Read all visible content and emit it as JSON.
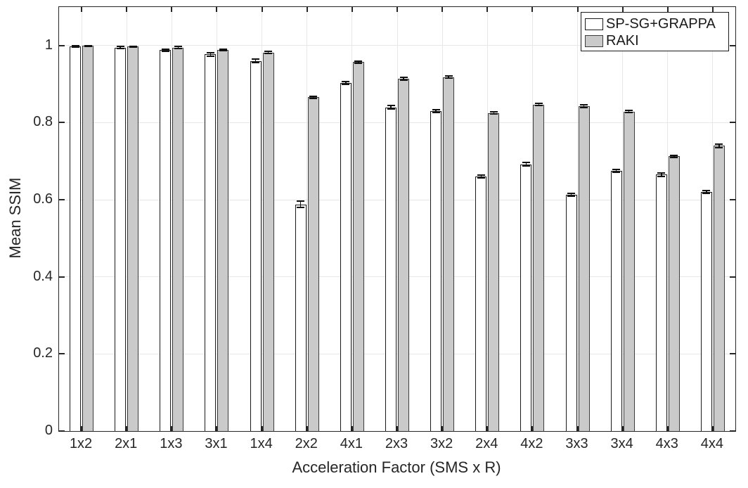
{
  "chart_data": {
    "type": "bar",
    "title": "",
    "xlabel": "Acceleration Factor (SMS x R)",
    "ylabel": "Mean SSIM",
    "categories": [
      "1x2",
      "2x1",
      "1x3",
      "3x1",
      "1x4",
      "2x2",
      "4x1",
      "2x3",
      "3x2",
      "2x4",
      "4x2",
      "3x3",
      "3x4",
      "4x3",
      "4x4"
    ],
    "series": [
      {
        "name": "SP-SG+GRAPPA",
        "fill": "#ffffff",
        "edge": "#1a1a1a",
        "values": [
          0.998,
          0.995,
          0.988,
          0.977,
          0.96,
          0.588,
          0.903,
          0.84,
          0.83,
          0.66,
          0.692,
          0.613,
          0.675,
          0.665,
          0.62
        ],
        "errors": [
          0.002,
          0.002,
          0.003,
          0.004,
          0.005,
          0.008,
          0.004,
          0.005,
          0.004,
          0.004,
          0.004,
          0.004,
          0.004,
          0.004,
          0.004
        ]
      },
      {
        "name": "RAKI",
        "fill": "#cacaca",
        "edge": "#3d3d3d",
        "values": [
          0.999,
          0.997,
          0.995,
          0.989,
          0.982,
          0.866,
          0.957,
          0.914,
          0.918,
          0.825,
          0.847,
          0.843,
          0.829,
          0.713,
          0.74
        ],
        "errors": [
          0.001,
          0.001,
          0.002,
          0.002,
          0.003,
          0.003,
          0.003,
          0.003,
          0.003,
          0.003,
          0.003,
          0.003,
          0.003,
          0.003,
          0.004
        ]
      }
    ],
    "ylim": [
      0,
      1.1
    ],
    "yticks": [
      0,
      0.2,
      0.4,
      0.6,
      0.8,
      1
    ],
    "ytick_labels": [
      "0",
      "0.2",
      "0.4",
      "0.6",
      "0.8",
      "1"
    ],
    "grid": true,
    "grid_color": "#e7e7e7",
    "axis_color": "#262626",
    "error_bar_color": "#111111",
    "legend_position": "top-right",
    "legend_entries": [
      "SP-SG+GRAPPA",
      "RAKI"
    ]
  }
}
